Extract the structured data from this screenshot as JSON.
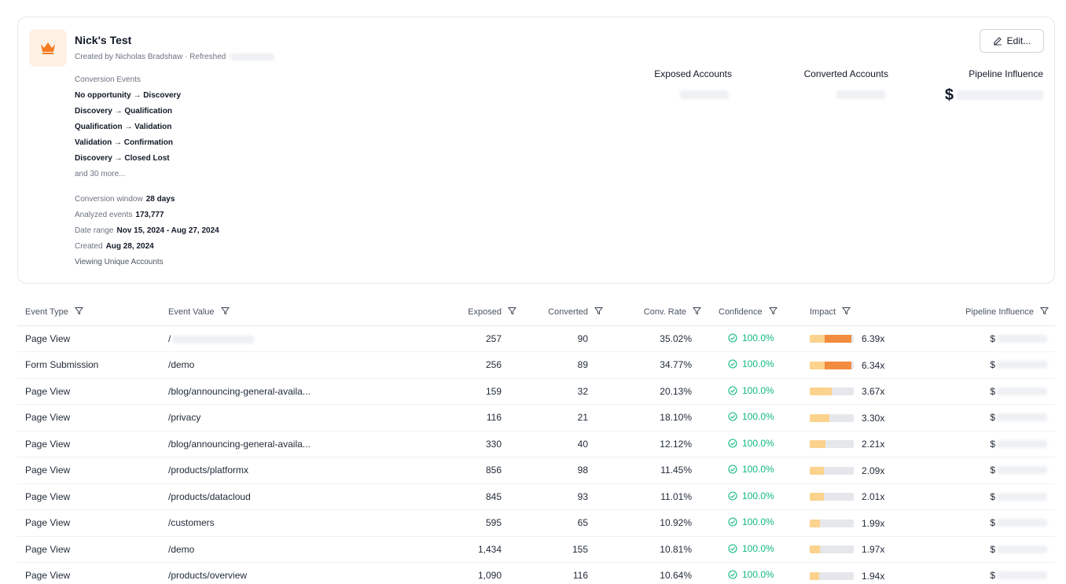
{
  "header": {
    "title": "Nick's Test",
    "created_by": "Created by Nicholas Bradshaw · Refreshed",
    "edit_label": "Edit..."
  },
  "conversion": {
    "heading": "Conversion Events",
    "events": [
      "No opportunity → Discovery",
      "Discovery → Qualification",
      "Qualification → Validation",
      "Validation → Confirmation",
      "Discovery → Closed Lost"
    ],
    "more": "and 30 more...",
    "window_label": "Conversion window",
    "window_value": "28 days",
    "analyzed_label": "Analyzed events",
    "analyzed_value": "173,777",
    "range_label": "Date range",
    "range_value": "Nov 15, 2024 - Aug 27, 2024",
    "created_label": "Created",
    "created_value": "Aug 28, 2024",
    "viewing": "Viewing Unique Accounts"
  },
  "metrics": {
    "exposed_label": "Exposed Accounts",
    "converted_label": "Converted Accounts",
    "pipeline_label": "Pipeline Influence",
    "currency": "$"
  },
  "table": {
    "headers": {
      "event_type": "Event Type",
      "event_value": "Event Value",
      "exposed": "Exposed",
      "converted": "Converted",
      "conv_rate": "Conv. Rate",
      "confidence": "Confidence",
      "impact": "Impact",
      "pipeline": "Pipeline Influence"
    },
    "currency": "$",
    "rows": [
      {
        "type": "Page View",
        "value": "/",
        "exposed": "257",
        "converted": "90",
        "rate": "35.02%",
        "confidence": "100.0%",
        "impact": "6.39x",
        "level": 0.95
      },
      {
        "type": "Form Submission",
        "value": "/demo",
        "exposed": "256",
        "converted": "89",
        "rate": "34.77%",
        "confidence": "100.0%",
        "impact": "6.34x",
        "level": 0.94
      },
      {
        "type": "Page View",
        "value": "/blog/announcing-general-availa...",
        "exposed": "159",
        "converted": "32",
        "rate": "20.13%",
        "confidence": "100.0%",
        "impact": "3.67x",
        "level": 0.5
      },
      {
        "type": "Page View",
        "value": "/privacy",
        "exposed": "116",
        "converted": "21",
        "rate": "18.10%",
        "confidence": "100.0%",
        "impact": "3.30x",
        "level": 0.45
      },
      {
        "type": "Page View",
        "value": "/blog/announcing-general-availa...",
        "exposed": "330",
        "converted": "40",
        "rate": "12.12%",
        "confidence": "100.0%",
        "impact": "2.21x",
        "level": 0.35
      },
      {
        "type": "Page View",
        "value": "/products/platformx",
        "exposed": "856",
        "converted": "98",
        "rate": "11.45%",
        "confidence": "100.0%",
        "impact": "2.09x",
        "level": 0.33
      },
      {
        "type": "Page View",
        "value": "/products/datacloud",
        "exposed": "845",
        "converted": "93",
        "rate": "11.01%",
        "confidence": "100.0%",
        "impact": "2.01x",
        "level": 0.32
      },
      {
        "type": "Page View",
        "value": "/customers",
        "exposed": "595",
        "converted": "65",
        "rate": "10.92%",
        "confidence": "100.0%",
        "impact": "1.99x",
        "level": 0.24
      },
      {
        "type": "Page View",
        "value": "/demo",
        "exposed": "1,434",
        "converted": "155",
        "rate": "10.81%",
        "confidence": "100.0%",
        "impact": "1.97x",
        "level": 0.23
      },
      {
        "type": "Page View",
        "value": "/products/overview",
        "exposed": "1,090",
        "converted": "116",
        "rate": "10.64%",
        "confidence": "100.0%",
        "impact": "1.94x",
        "level": 0.22
      }
    ]
  },
  "colors": {
    "accent": "#f47b20",
    "confidence": "#10b981",
    "impact_strong": "#f47b20",
    "impact_light": "#fbd38d",
    "impact_track": "#e5e7eb"
  },
  "icons": {
    "avatar": "crown-icon",
    "edit": "edit-icon",
    "filter": "filter-icon",
    "confidence": "check-circle-icon"
  }
}
